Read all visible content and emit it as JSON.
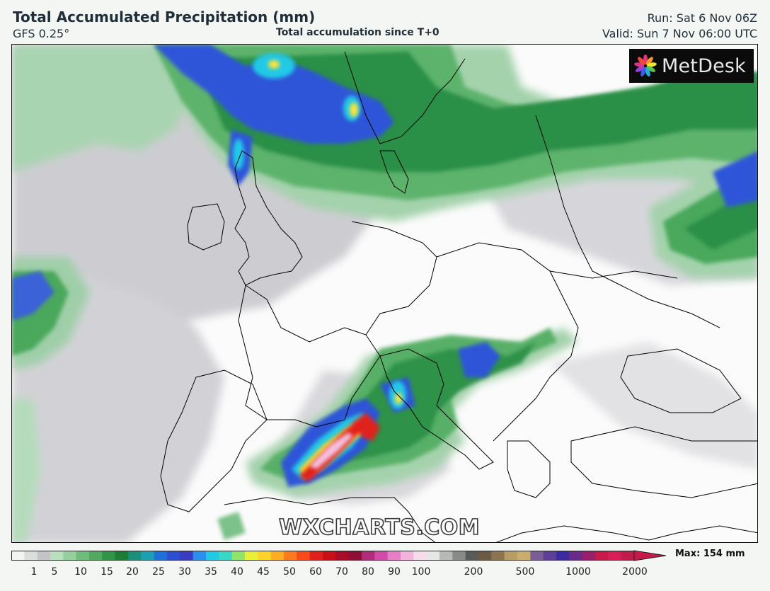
{
  "header": {
    "title": "Total Accumulated Precipitation (mm)",
    "model": "GFS 0.25°",
    "caption": "Total accumulation since T+0",
    "run": "Run: Sat 6 Nov 06Z",
    "valid": "Valid: Sun 7 Nov 06:00 UTC"
  },
  "map": {
    "logo_text": "MetDesk",
    "watermark": "WXCHARTS.COM",
    "colors": {
      "land": "#fbfbfb",
      "trace": "#c9c9cc",
      "light_green": "#a8d5b0",
      "green": "#4fae63",
      "dark_green": "#1e8a3d",
      "blue": "#2f56d6",
      "cyan": "#22c9e6",
      "yellow": "#ffe334",
      "red": "#d91a1a",
      "pink": "#f4c0de",
      "border_lines": "#000000"
    }
  },
  "legend": {
    "ticks": [
      "1",
      "5",
      "10",
      "15",
      "20",
      "25",
      "30",
      "35",
      "40",
      "45",
      "50",
      "60",
      "70",
      "80",
      "90",
      "100",
      "200",
      "500",
      "1000",
      "2000"
    ],
    "max_label": "Max: 154 mm",
    "colors": [
      "#f4f4f4",
      "#dcdcdc",
      "#c4c4c8",
      "#b8e0bd",
      "#94cf9d",
      "#6fbd7d",
      "#4faa60",
      "#2f9448",
      "#1b7d37",
      "#1a8f7a",
      "#1aa0b0",
      "#1e6fd8",
      "#2a4fd0",
      "#3a3ac2",
      "#2b8ff0",
      "#22c9e6",
      "#39d7c8",
      "#8fe26a",
      "#e8ee3a",
      "#ffd42a",
      "#ffac22",
      "#ff7a1e",
      "#f64a1a",
      "#e0201a",
      "#c81018",
      "#a80c28",
      "#8e0e3a",
      "#b02b78",
      "#d24aa8",
      "#e77fc6",
      "#f3b2dc",
      "#f7dceb",
      "#e6e6e6",
      "#b8b8b8",
      "#8a8a8a",
      "#5a5a5a",
      "#6b5a44",
      "#8c744e",
      "#b89d62",
      "#c9ad6a",
      "#7a5e96",
      "#5e3f96",
      "#3b2aa0",
      "#6a2a8a",
      "#9a1e6a",
      "#c81a4a",
      "#d81e56",
      "#c01c4c"
    ]
  }
}
